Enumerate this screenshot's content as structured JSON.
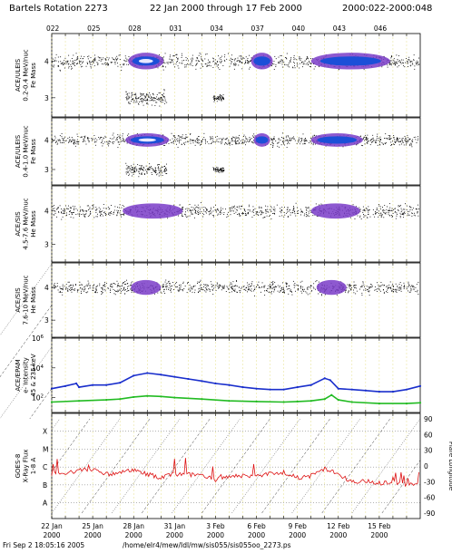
{
  "header": {
    "rotation": "Bartels Rotation 2273",
    "range": "22 Jan 2000 through 17 Feb 2000",
    "doy_range": "2000:022-2000:048"
  },
  "footer": {
    "timestamp": "Fri Sep  2 18:05:16 2005",
    "path": "/home/elr4/mew/Idl/mw/sis055/sis055oo_2273.ps"
  },
  "colors": {
    "scatter": "#000000",
    "mid_density": "#7a3cc8",
    "high_density": "#1c4fd8",
    "peak_density": "#e8e8ff",
    "dashed_grid": "#e6e08a",
    "epam_high": "#1a2fcc",
    "epam_low": "#22bb22",
    "xray": "#dd1111"
  },
  "chart_data": [
    {
      "type": "scatter",
      "panel": "ACE/ULEIS 0.2-0.4 MeV/nuc",
      "ylabel": [
        "ACE/ULEIS",
        "0.2-0.4 MeV/nuc",
        "Fe Mass"
      ],
      "yticks": [
        "4",
        "3"
      ],
      "top_ticks": [
        "022",
        "025",
        "028",
        "031",
        "034",
        "037",
        "040",
        "043",
        "046"
      ],
      "x_range_doy": [
        22,
        49
      ],
      "populations": [
        {
          "mass": 4,
          "x_start": 22.0,
          "x_end": 48.9,
          "intensity": "continuous"
        },
        {
          "mass": 3,
          "x_start": 27.4,
          "x_end": 30.4,
          "intensity": "scattered"
        },
        {
          "mass": 3,
          "x_start": 33.8,
          "x_end": 34.6,
          "intensity": "cluster"
        }
      ],
      "dense_regions": [
        {
          "x_start": 27.6,
          "x_end": 30.2,
          "level": "peak"
        },
        {
          "x_start": 36.6,
          "x_end": 38.2,
          "level": "high"
        },
        {
          "x_start": 41.0,
          "x_end": 46.8,
          "level": "high"
        }
      ]
    },
    {
      "type": "scatter",
      "panel": "ACE/ULEIS 0.4-1.0 MeV/nuc",
      "ylabel": [
        "ACE/ULEIS",
        "0.4-1.0 MeV/nuc",
        "Fe Mass"
      ],
      "yticks": [
        "4",
        "3"
      ],
      "populations": [
        {
          "mass": 4,
          "x_start": 22.0,
          "x_end": 48.9,
          "intensity": "continuous"
        },
        {
          "mass": 3,
          "x_start": 27.4,
          "x_end": 30.4,
          "intensity": "scattered"
        },
        {
          "mass": 3,
          "x_start": 33.8,
          "x_end": 34.6,
          "intensity": "cluster"
        }
      ],
      "dense_regions": [
        {
          "x_start": 27.4,
          "x_end": 30.6,
          "level": "peak"
        },
        {
          "x_start": 36.8,
          "x_end": 38.0,
          "level": "high"
        },
        {
          "x_start": 41.0,
          "x_end": 44.8,
          "level": "high"
        }
      ]
    },
    {
      "type": "scatter",
      "panel": "ACE/SIS 4.5-7.6 MeV/nuc",
      "ylabel": [
        "ACE/SIS",
        "4.5-7.6 MeV/nuc",
        "He Mass"
      ],
      "yticks": [
        "4",
        "3"
      ],
      "populations": [
        {
          "mass": 4,
          "x_start": 22.0,
          "x_end": 48.9,
          "intensity": "continuous"
        }
      ],
      "dense_regions": [
        {
          "x_start": 27.2,
          "x_end": 31.6,
          "level": "mid"
        },
        {
          "x_start": 41.0,
          "x_end": 44.6,
          "level": "mid"
        }
      ]
    },
    {
      "type": "scatter",
      "panel": "ACE/SIS 7.6-10 MeV/nuc",
      "ylabel": [
        "ACE/SIS",
        "7.6-10 MeV/nuc",
        "He Mass"
      ],
      "yticks": [
        "4",
        "3"
      ],
      "populations": [
        {
          "mass": 4,
          "x_start": 22.0,
          "x_end": 48.9,
          "intensity": "continuous"
        }
      ],
      "dense_regions": [
        {
          "x_start": 27.8,
          "x_end": 30.0,
          "level": "mid"
        },
        {
          "x_start": 41.4,
          "x_end": 43.6,
          "level": "mid"
        }
      ]
    },
    {
      "type": "line",
      "panel": "ACE/EPAM",
      "ylabel": [
        "ACE/EPAM",
        "e- Intensity",
        "45 & 235 keV"
      ],
      "yscale": "log",
      "ylim": [
        10,
        1000000
      ],
      "yticks": [
        "10^6",
        "10^4",
        "10^2"
      ],
      "series": [
        {
          "x": [
            22,
            23,
            23.8,
            24,
            25,
            26,
            27,
            28,
            29,
            30,
            31,
            32,
            33,
            34,
            35,
            36,
            37,
            38,
            39,
            40,
            41,
            42,
            42.4,
            43,
            44,
            45,
            46,
            47,
            48,
            49
          ],
          "y": [
            400,
            600,
            900,
            500,
            700,
            700,
            1000,
            3000,
            4500,
            3500,
            2500,
            1800,
            1300,
            900,
            700,
            500,
            400,
            350,
            350,
            500,
            700,
            2000,
            1500,
            400,
            350,
            300,
            250,
            250,
            350,
            600
          ]
        },
        {
          "x": [
            22,
            24,
            26,
            27,
            28,
            29,
            30,
            31,
            33,
            35,
            37,
            39,
            40,
            41,
            42,
            42.5,
            43,
            44,
            46,
            48,
            49
          ],
          "y": [
            50,
            60,
            70,
            80,
            110,
            130,
            120,
            100,
            80,
            60,
            55,
            50,
            55,
            60,
            80,
            150,
            70,
            50,
            40,
            40,
            45
          ]
        }
      ]
    },
    {
      "type": "line",
      "panel": "GOES-8",
      "ylabel": [
        "GOES-8",
        "X-Ray Flux",
        "1-8 A"
      ],
      "yticks_left": [
        "X",
        "M",
        "C",
        "B",
        "A"
      ],
      "yticks_right": [
        "90",
        "60",
        "30",
        "0",
        "-30",
        "-60",
        "-90"
      ],
      "ylabel_right": "Flare Longitude",
      "series": [
        {
          "x": [
            22,
            23,
            24,
            25,
            26,
            27,
            28,
            29,
            30,
            31,
            32,
            33,
            34,
            35,
            36,
            37,
            38,
            39,
            40,
            41,
            42,
            43,
            44,
            45,
            46,
            47,
            48,
            49
          ],
          "y": [
            1.6,
            1.7,
            1.8,
            1.9,
            1.6,
            1.7,
            1.8,
            1.6,
            1.4,
            1.6,
            1.6,
            1.5,
            1.3,
            1.5,
            1.5,
            1.5,
            1.6,
            1.7,
            1.4,
            1.5,
            1.9,
            1.6,
            1.2,
            1.2,
            1.1,
            1.2,
            1.0,
            1.0
          ]
        }
      ]
    }
  ],
  "xaxis": {
    "label_days": [
      "22 Jan",
      "25 Jan",
      "28 Jan",
      "31 Jan",
      "3 Feb",
      "6 Feb",
      "9 Feb",
      "12 Feb",
      "15 Feb"
    ],
    "label_years": [
      "2000",
      "2000",
      "2000",
      "2000",
      "2000",
      "2000",
      "2000",
      "2000",
      "2000"
    ]
  }
}
